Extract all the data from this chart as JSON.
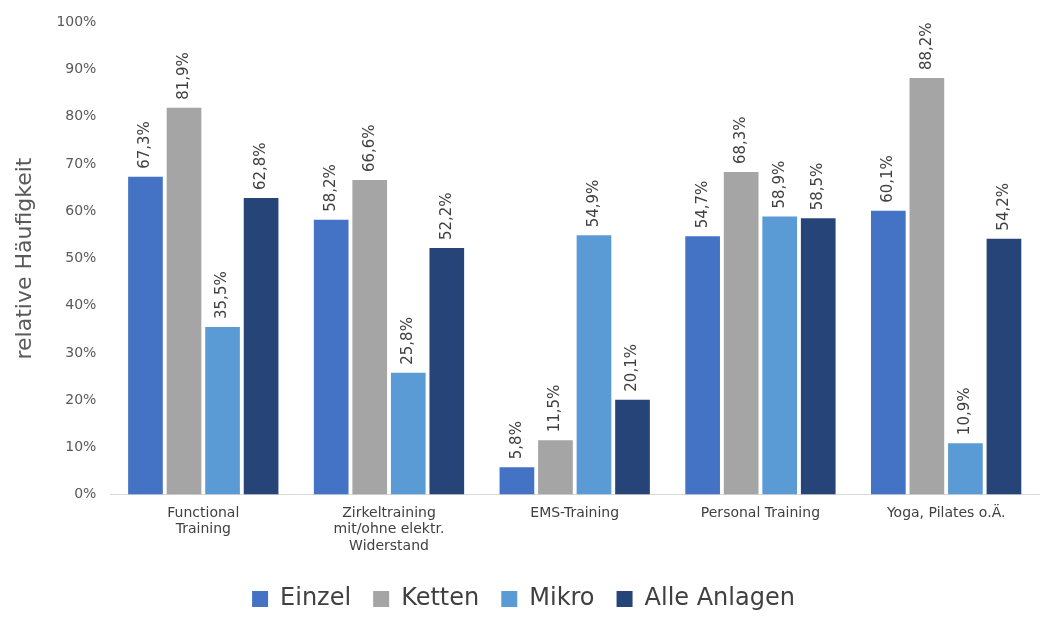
{
  "chart_data": {
    "type": "bar",
    "ylabel": "relative Häufigkeit",
    "categories": [
      "Functional Training",
      "Zirkeltraining mit/ohne elektr. Widerstand",
      "EMS-Training",
      "Personal Training",
      "Yoga, Pilates o.Ä."
    ],
    "series": [
      {
        "name": "Einzel",
        "color": "#4472c4",
        "values": [
          67.3,
          58.2,
          5.8,
          54.7,
          60.1
        ],
        "value_labels": [
          "67,3%",
          "58,2%",
          "5,8%",
          "54,7%",
          "60,1%"
        ]
      },
      {
        "name": "Ketten",
        "color": "#a5a5a5",
        "values": [
          81.9,
          66.6,
          11.5,
          68.3,
          88.2
        ],
        "value_labels": [
          "81,9%",
          "66,6%",
          "11,5%",
          "68,3%",
          "88,2%"
        ]
      },
      {
        "name": "Mikro",
        "color": "#5b9bd5",
        "values": [
          35.5,
          25.8,
          54.9,
          58.9,
          10.9
        ],
        "value_labels": [
          "35,5%",
          "25,8%",
          "54,9%",
          "58,9%",
          "10,9%"
        ]
      },
      {
        "name": "Alle Anlagen",
        "color": "#264478",
        "values": [
          62.8,
          52.2,
          20.1,
          58.5,
          54.2
        ],
        "value_labels": [
          "62,8%",
          "52,2%",
          "20,1%",
          "58,5%",
          "54,2%"
        ]
      }
    ],
    "ylim": [
      0,
      100
    ],
    "yticks": [
      {
        "value": 0,
        "label": "0%"
      },
      {
        "value": 10,
        "label": "10%"
      },
      {
        "value": 20,
        "label": "20%"
      },
      {
        "value": 30,
        "label": "30%"
      },
      {
        "value": 40,
        "label": "40%"
      },
      {
        "value": 50,
        "label": "50%"
      },
      {
        "value": 60,
        "label": "60%"
      },
      {
        "value": 70,
        "label": "70%"
      },
      {
        "value": 80,
        "label": "80%"
      },
      {
        "value": 90,
        "label": "90%"
      },
      {
        "value": 100,
        "label": "100%"
      }
    ],
    "grid": false,
    "legend": "bottom"
  }
}
